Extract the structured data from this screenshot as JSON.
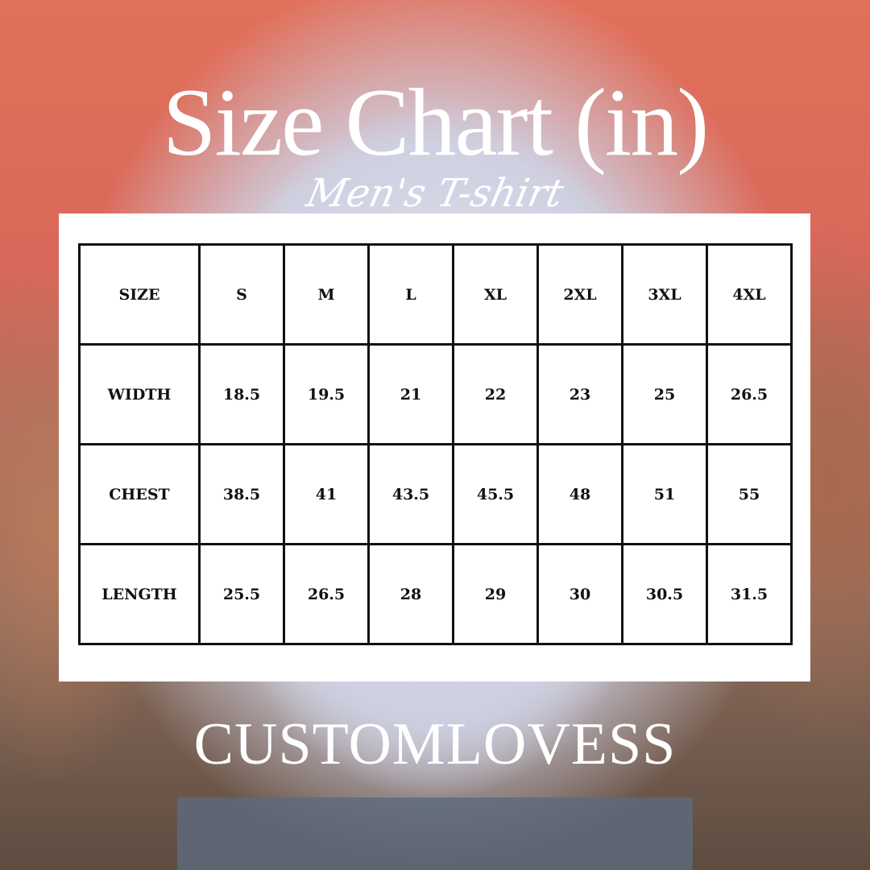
{
  "title": "Size Chart (in)",
  "subtitle": "Men's T-shirt",
  "table": {
    "header": [
      "SIZE",
      "S",
      "M",
      "L",
      "XL",
      "2XL",
      "3XL",
      "4XL"
    ],
    "rows": [
      [
        "WIDTH",
        "18.5",
        "19.5",
        "21",
        "22",
        "23",
        "25",
        "26.5"
      ],
      [
        "CHEST",
        "38.5",
        "41",
        "43.5",
        "45.5",
        "48",
        "51",
        "55"
      ],
      [
        "LENGTH",
        "25.5",
        "26.5",
        "28",
        "29",
        "30",
        "30.5",
        "31.5"
      ]
    ]
  },
  "brand": "CUSTOMLOVESS"
}
